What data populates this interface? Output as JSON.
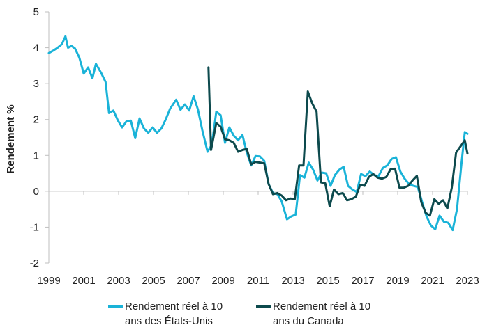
{
  "chart_data": {
    "type": "line",
    "title": "",
    "xlabel": "",
    "ylabel": "Rendement %",
    "ylim": [
      -2,
      5
    ],
    "xlim": [
      1999,
      2023
    ],
    "yticks": [
      "5",
      "4",
      "3",
      "2",
      "1",
      "0",
      "-1",
      "-2"
    ],
    "xticks": [
      "1999",
      "2001",
      "2003",
      "2005",
      "2007",
      "2009",
      "2011",
      "2013",
      "2015",
      "2017",
      "2019",
      "2021",
      "2023"
    ],
    "grid": false,
    "legend_position": "bottom",
    "series": [
      {
        "name": "Rendement réel à 10 ans des États-Unis",
        "color": "#1ab3d8",
        "points": [
          [
            1999.0,
            3.85
          ],
          [
            1999.25,
            3.92
          ],
          [
            1999.5,
            4.0
          ],
          [
            1999.75,
            4.1
          ],
          [
            1999.95,
            4.32
          ],
          [
            2000.1,
            4.0
          ],
          [
            2000.3,
            4.05
          ],
          [
            2000.5,
            3.98
          ],
          [
            2000.75,
            3.72
          ],
          [
            2001.0,
            3.28
          ],
          [
            2001.25,
            3.45
          ],
          [
            2001.5,
            3.15
          ],
          [
            2001.7,
            3.55
          ],
          [
            2002.0,
            3.3
          ],
          [
            2002.25,
            3.05
          ],
          [
            2002.45,
            2.18
          ],
          [
            2002.7,
            2.25
          ],
          [
            2002.95,
            1.98
          ],
          [
            2003.2,
            1.78
          ],
          [
            2003.45,
            1.95
          ],
          [
            2003.7,
            1.97
          ],
          [
            2003.95,
            1.48
          ],
          [
            2004.2,
            2.03
          ],
          [
            2004.45,
            1.75
          ],
          [
            2004.7,
            1.63
          ],
          [
            2004.95,
            1.78
          ],
          [
            2005.2,
            1.63
          ],
          [
            2005.45,
            1.75
          ],
          [
            2005.7,
            2.0
          ],
          [
            2005.95,
            2.3
          ],
          [
            2006.3,
            2.55
          ],
          [
            2006.55,
            2.27
          ],
          [
            2006.8,
            2.42
          ],
          [
            2007.05,
            2.25
          ],
          [
            2007.3,
            2.65
          ],
          [
            2007.55,
            2.28
          ],
          [
            2007.8,
            1.7
          ],
          [
            2008.1,
            1.1
          ],
          [
            2008.35,
            1.3
          ],
          [
            2008.6,
            2.22
          ],
          [
            2008.85,
            2.12
          ],
          [
            2009.1,
            1.35
          ],
          [
            2009.35,
            1.78
          ],
          [
            2009.6,
            1.55
          ],
          [
            2009.85,
            1.42
          ],
          [
            2010.1,
            1.57
          ],
          [
            2010.35,
            1.08
          ],
          [
            2010.6,
            0.72
          ],
          [
            2010.85,
            0.98
          ],
          [
            2011.1,
            0.97
          ],
          [
            2011.35,
            0.85
          ],
          [
            2011.6,
            0.2
          ],
          [
            2011.85,
            -0.05
          ],
          [
            2012.1,
            -0.08
          ],
          [
            2012.35,
            -0.28
          ],
          [
            2012.65,
            -0.78
          ],
          [
            2012.9,
            -0.7
          ],
          [
            2013.15,
            -0.65
          ],
          [
            2013.4,
            0.45
          ],
          [
            2013.65,
            0.38
          ],
          [
            2013.9,
            0.8
          ],
          [
            2014.15,
            0.6
          ],
          [
            2014.4,
            0.3
          ],
          [
            2014.65,
            0.52
          ],
          [
            2014.9,
            0.5
          ],
          [
            2015.15,
            0.15
          ],
          [
            2015.4,
            0.45
          ],
          [
            2015.65,
            0.6
          ],
          [
            2015.9,
            0.68
          ],
          [
            2016.15,
            0.15
          ],
          [
            2016.4,
            0.05
          ],
          [
            2016.65,
            -0.02
          ],
          [
            2016.9,
            0.48
          ],
          [
            2017.15,
            0.42
          ],
          [
            2017.4,
            0.55
          ],
          [
            2017.65,
            0.45
          ],
          [
            2017.9,
            0.42
          ],
          [
            2018.15,
            0.65
          ],
          [
            2018.4,
            0.72
          ],
          [
            2018.65,
            0.9
          ],
          [
            2018.9,
            0.95
          ],
          [
            2019.15,
            0.55
          ],
          [
            2019.4,
            0.35
          ],
          [
            2019.65,
            0.2
          ],
          [
            2019.9,
            0.15
          ],
          [
            2020.15,
            0.12
          ],
          [
            2020.4,
            -0.3
          ],
          [
            2020.65,
            -0.7
          ],
          [
            2020.9,
            -0.95
          ],
          [
            2021.15,
            -1.06
          ],
          [
            2021.4,
            -0.68
          ],
          [
            2021.65,
            -0.85
          ],
          [
            2021.9,
            -0.88
          ],
          [
            2022.15,
            -1.08
          ],
          [
            2022.4,
            -0.5
          ],
          [
            2022.65,
            0.75
          ],
          [
            2022.85,
            1.65
          ],
          [
            2023.0,
            1.6
          ]
        ]
      },
      {
        "name": "Rendement réel à 10 ans du Canada",
        "color": "#0d4a4d",
        "points": [
          [
            2008.15,
            3.45
          ],
          [
            2008.3,
            1.15
          ],
          [
            2008.6,
            1.9
          ],
          [
            2008.85,
            1.8
          ],
          [
            2009.1,
            1.45
          ],
          [
            2009.35,
            1.42
          ],
          [
            2009.6,
            1.35
          ],
          [
            2009.85,
            1.1
          ],
          [
            2010.1,
            1.15
          ],
          [
            2010.35,
            1.18
          ],
          [
            2010.6,
            0.75
          ],
          [
            2010.85,
            0.82
          ],
          [
            2011.1,
            0.8
          ],
          [
            2011.35,
            0.78
          ],
          [
            2011.6,
            0.2
          ],
          [
            2011.85,
            -0.08
          ],
          [
            2012.1,
            -0.05
          ],
          [
            2012.35,
            -0.12
          ],
          [
            2012.6,
            -0.25
          ],
          [
            2012.85,
            -0.2
          ],
          [
            2013.1,
            -0.22
          ],
          [
            2013.35,
            0.72
          ],
          [
            2013.6,
            0.72
          ],
          [
            2013.85,
            2.78
          ],
          [
            2014.1,
            2.45
          ],
          [
            2014.35,
            2.22
          ],
          [
            2014.6,
            0.25
          ],
          [
            2014.85,
            0.22
          ],
          [
            2015.1,
            -0.42
          ],
          [
            2015.35,
            0.05
          ],
          [
            2015.6,
            -0.08
          ],
          [
            2015.85,
            -0.05
          ],
          [
            2016.1,
            -0.25
          ],
          [
            2016.35,
            -0.22
          ],
          [
            2016.6,
            -0.15
          ],
          [
            2016.85,
            0.18
          ],
          [
            2017.1,
            0.15
          ],
          [
            2017.35,
            0.4
          ],
          [
            2017.6,
            0.48
          ],
          [
            2017.85,
            0.38
          ],
          [
            2018.1,
            0.35
          ],
          [
            2018.35,
            0.4
          ],
          [
            2018.6,
            0.62
          ],
          [
            2018.85,
            0.63
          ],
          [
            2019.1,
            0.1
          ],
          [
            2019.35,
            0.1
          ],
          [
            2019.6,
            0.15
          ],
          [
            2019.85,
            0.3
          ],
          [
            2020.1,
            0.43
          ],
          [
            2020.35,
            -0.3
          ],
          [
            2020.6,
            -0.6
          ],
          [
            2020.85,
            -0.68
          ],
          [
            2021.1,
            -0.22
          ],
          [
            2021.35,
            -0.35
          ],
          [
            2021.6,
            -0.25
          ],
          [
            2021.85,
            -0.48
          ],
          [
            2022.1,
            0.1
          ],
          [
            2022.35,
            1.08
          ],
          [
            2022.6,
            1.25
          ],
          [
            2022.85,
            1.42
          ],
          [
            2023.0,
            1.05
          ]
        ]
      }
    ]
  },
  "legend": {
    "items": [
      {
        "label_line1": "Rendement réel à 10",
        "label_line2": "ans des États-Unis",
        "color": "#1ab3d8"
      },
      {
        "label_line1": "Rendement réel à 10",
        "label_line2": "ans du Canada",
        "color": "#0d4a4d"
      }
    ]
  }
}
